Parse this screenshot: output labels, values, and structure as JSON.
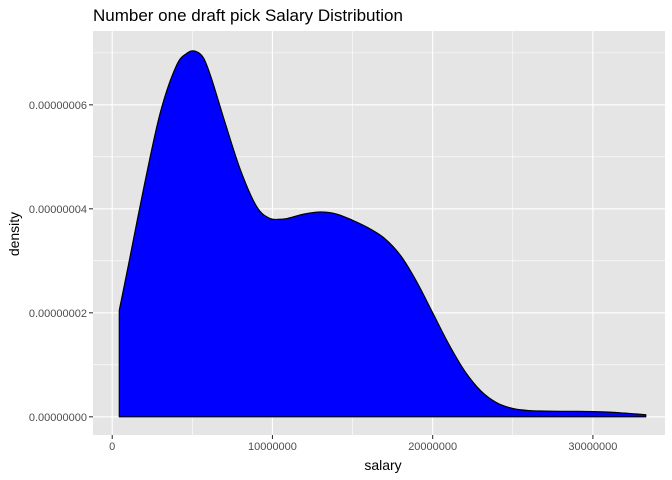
{
  "chart_data": {
    "type": "area",
    "title": "Number one draft pick Salary Distribution",
    "xlabel": "salary",
    "ylabel": "density",
    "xlim": [
      -1200000,
      34500000
    ],
    "ylim": [
      -3.5e-09,
      7.42e-08
    ],
    "x_ticks": [
      0,
      10000000,
      20000000,
      30000000
    ],
    "x_tick_labels": [
      "0",
      "10000000",
      "20000000",
      "30000000"
    ],
    "y_ticks": [
      0,
      2e-08,
      4e-08,
      6e-08
    ],
    "y_tick_labels": [
      "0.00000000",
      "0.00000002",
      "0.00000004",
      "0.00000006"
    ],
    "grid": true,
    "fill_color": "#0000ff",
    "line_color": "#000000",
    "panel_color": "#e5e5e5",
    "grid_color": "#ffffff",
    "series": [
      {
        "x": [
          440000,
          1000000,
          2000000,
          3000000,
          4000000,
          4700000,
          5200000,
          5700000,
          6200000,
          7000000,
          8000000,
          9000000,
          9800000,
          10500000,
          11000000,
          12000000,
          13000000,
          14000000,
          15000000,
          16000000,
          17000000,
          18000000,
          19000000,
          20000000,
          21000000,
          22000000,
          23000000,
          24000000,
          25000000,
          26000000,
          27000000,
          28000000,
          29000000,
          30000000,
          31000000,
          32000000,
          33300000
        ],
        "y": [
          2.05e-08,
          2.9e-08,
          4.45e-08,
          5.85e-08,
          6.75e-08,
          7e-08,
          7.03e-08,
          6.9e-08,
          6.5e-08,
          5.7e-08,
          4.75e-08,
          4.05e-08,
          3.82e-08,
          3.8e-08,
          3.82e-08,
          3.9e-08,
          3.94e-08,
          3.9e-08,
          3.78e-08,
          3.63e-08,
          3.43e-08,
          3.1e-08,
          2.6e-08,
          2e-08,
          1.4e-08,
          8.8e-09,
          5e-09,
          2.7e-09,
          1.6e-09,
          1.2e-09,
          1.1e-09,
          1.05e-09,
          1.05e-09,
          1e-09,
          9e-10,
          7e-10,
          4e-10
        ]
      }
    ]
  }
}
